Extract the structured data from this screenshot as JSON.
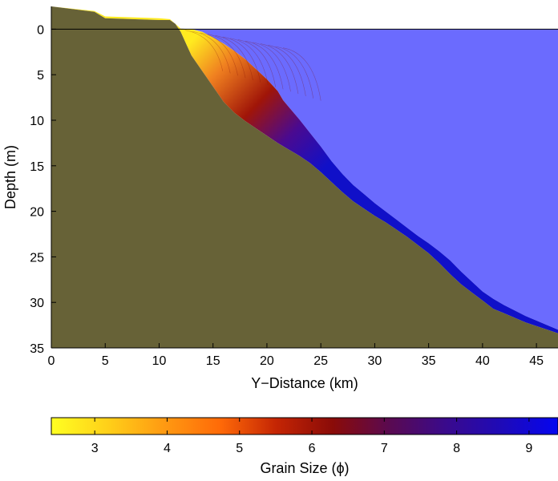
{
  "chart_data": {
    "type": "area",
    "title": "",
    "xlabel": "Y−Distance (km)",
    "ylabel": "Depth (m)",
    "xlim": [
      0,
      47
    ],
    "ylim": [
      35,
      -2.5
    ],
    "y_reversed": true,
    "x_ticks": [
      0,
      5,
      10,
      15,
      20,
      25,
      30,
      35,
      40,
      45
    ],
    "y_ticks": [
      0,
      5,
      10,
      15,
      20,
      25,
      30,
      35
    ],
    "grid": false,
    "sea_level_depth": 0,
    "colors": {
      "seabed": "#676237",
      "water": "#6b6bfe",
      "fine_deposit": "#1010c8",
      "prodelta_tip": "#4a0a90",
      "delta_front": "#a01508",
      "delta_top": "#f08020",
      "coarse_sand": "#ffea20"
    },
    "series": [
      {
        "role": "seabed_surface",
        "x": [
          0,
          4,
          5,
          10,
          11,
          11.5,
          12,
          12.5,
          13,
          14,
          15,
          16,
          17,
          18,
          19,
          20,
          21,
          22,
          23,
          24,
          25,
          26,
          27,
          28,
          29,
          30,
          31,
          32,
          33,
          34,
          35,
          36,
          37,
          38,
          39,
          40,
          41,
          42,
          43,
          44,
          45,
          46,
          47
        ],
        "y": [
          -2.5,
          -1.9,
          -1.2,
          -1.0,
          -1.0,
          -0.6,
          0.3,
          1.6,
          2.9,
          4.6,
          6.3,
          8.0,
          9.2,
          10.1,
          10.9,
          11.7,
          12.5,
          13.2,
          13.9,
          14.7,
          15.7,
          16.8,
          17.9,
          18.9,
          19.7,
          20.5,
          21.2,
          22.0,
          22.8,
          23.7,
          24.6,
          25.7,
          26.9,
          28.0,
          28.9,
          29.8,
          30.7,
          31.2,
          31.7,
          32.2,
          32.6,
          33.0,
          33.4
        ]
      },
      {
        "role": "deposit_top_surface",
        "x": [
          0,
          4,
          5,
          10,
          11,
          11.5,
          12,
          13,
          14,
          15,
          16,
          17,
          18,
          19,
          20,
          21,
          21.5,
          22,
          23,
          24,
          25,
          26,
          27,
          28,
          29,
          30,
          31,
          32,
          33,
          34,
          35,
          36,
          37,
          38,
          39,
          40,
          41,
          42,
          43,
          44,
          45,
          46,
          47
        ],
        "y": [
          -2.5,
          -2.0,
          -1.4,
          -1.2,
          -1.1,
          -0.6,
          -0.05,
          0.0,
          0.3,
          0.9,
          1.6,
          2.4,
          3.3,
          4.4,
          5.5,
          6.8,
          7.8,
          8.5,
          9.9,
          11.4,
          12.9,
          14.5,
          15.9,
          17.1,
          18.1,
          19.1,
          20.0,
          20.9,
          21.8,
          22.7,
          23.5,
          24.4,
          25.4,
          26.6,
          27.7,
          28.8,
          29.6,
          30.3,
          30.9,
          31.5,
          32.0,
          32.5,
          33.0
        ]
      }
    ],
    "colorbar": {
      "label": "Grain Size (ϕ)",
      "min": 2.4,
      "max": 9.4,
      "ticks": [
        3,
        4,
        5,
        6,
        7,
        8,
        9
      ],
      "colormap": [
        "#ffff22",
        "#ffd019",
        "#ff9a12",
        "#ff6a08",
        "#c42504",
        "#8a0b08",
        "#5a0a50",
        "#3a0a8c",
        "#1e0ab8",
        "#0505f0"
      ]
    }
  }
}
